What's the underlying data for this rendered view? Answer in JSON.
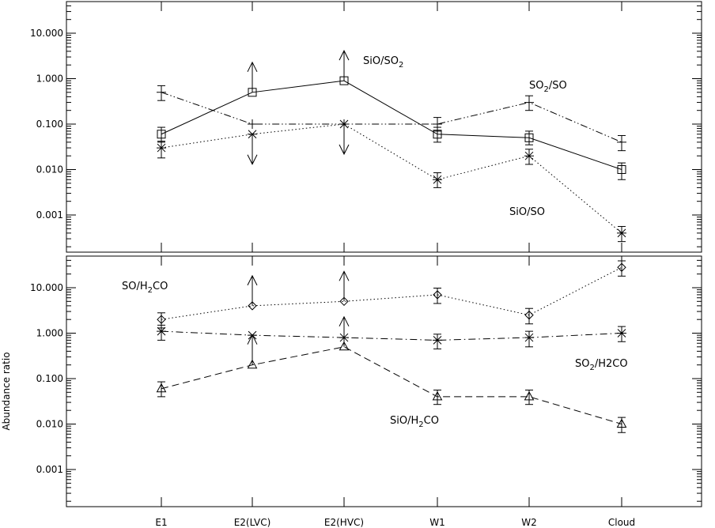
{
  "chart_data": [
    {
      "type": "line",
      "panel": "top",
      "yscale": "log",
      "ylim": [
        0.0002,
        50
      ],
      "ytick_labels": [
        "0.001",
        "0.010",
        "0.100",
        "1.000",
        "10.000"
      ],
      "categories": [
        "E1",
        "E2(LVC)",
        "E2(HVC)",
        "W1",
        "W2",
        "Cloud"
      ],
      "series": [
        {
          "label_parts": [
            "SiO/SO",
            "2",
            ""
          ],
          "line_style": "solid",
          "marker": "square",
          "values": [
            0.06,
            0.5,
            0.9,
            0.06,
            0.05,
            0.01
          ],
          "err_lo": [
            0.04,
            null,
            null,
            0.04,
            0.035,
            0.006
          ],
          "err_hi": [
            0.085,
            null,
            null,
            0.085,
            0.07,
            0.014
          ],
          "limits": [
            "",
            "lower",
            "lower",
            "",
            "",
            ""
          ]
        },
        {
          "label_parts": [
            "SO",
            "2",
            "/SO"
          ],
          "line_style": "dashdotdot",
          "marker": "plus",
          "values": [
            0.5,
            0.1,
            0.1,
            0.1,
            0.3,
            0.04
          ],
          "err_lo": [
            0.33,
            null,
            null,
            0.07,
            0.2,
            0.026
          ],
          "err_hi": [
            0.7,
            null,
            null,
            0.14,
            0.42,
            0.056
          ],
          "limits": [
            "",
            "",
            "",
            "",
            "",
            ""
          ]
        },
        {
          "label_parts": [
            "SiO/SO",
            "",
            ""
          ],
          "line_style": "dotted",
          "marker": "asterisk",
          "values": [
            0.03,
            0.06,
            0.1,
            0.006,
            0.02,
            0.0004
          ],
          "err_lo": [
            0.018,
            null,
            null,
            0.004,
            0.013,
            0.00026
          ],
          "err_hi": [
            0.042,
            null,
            null,
            0.0085,
            0.028,
            0.00056
          ],
          "limits": [
            "",
            "upper",
            "upper",
            "",
            "",
            ""
          ]
        }
      ]
    },
    {
      "type": "line",
      "panel": "bottom",
      "yscale": "log",
      "ylim": [
        0.0002,
        50
      ],
      "ylabel": "Abundance ratio",
      "ytick_labels": [
        "0.001",
        "0.010",
        "0.100",
        "1.000",
        "10.000"
      ],
      "categories": [
        "E1",
        "E2(LVC)",
        "E2(HVC)",
        "W1",
        "W2",
        "Cloud"
      ],
      "series": [
        {
          "label_parts": [
            "SO/H",
            "2",
            "CO"
          ],
          "line_style": "dotted",
          "marker": "diamond",
          "values": [
            2,
            4,
            5,
            7,
            2.5,
            28
          ],
          "err_lo": [
            1.3,
            null,
            null,
            4.5,
            1.6,
            18
          ],
          "err_hi": [
            2.8,
            null,
            null,
            9.8,
            3.5,
            39
          ],
          "limits": [
            "",
            "lower",
            "lower",
            "",
            "",
            ""
          ]
        },
        {
          "label_parts": [
            "SO",
            "2",
            "/H2CO"
          ],
          "line_style": "dashdot",
          "marker": "asterisk",
          "values": [
            1.1,
            0.9,
            0.8,
            0.7,
            0.8,
            1.0
          ],
          "err_lo": [
            0.7,
            null,
            null,
            0.45,
            0.5,
            0.65
          ],
          "err_hi": [
            1.5,
            null,
            null,
            0.95,
            1.1,
            1.4
          ],
          "limits": [
            "",
            "",
            "",
            "",
            "",
            ""
          ]
        },
        {
          "label_parts": [
            "SiO/H",
            "2",
            "CO"
          ],
          "line_style": "dashed",
          "marker": "triangle",
          "values": [
            0.06,
            0.2,
            0.5,
            0.04,
            0.04,
            0.01
          ],
          "err_lo": [
            0.04,
            null,
            null,
            0.027,
            0.027,
            0.0065
          ],
          "err_hi": [
            0.085,
            null,
            null,
            0.056,
            0.056,
            0.014
          ],
          "limits": [
            "",
            "lower",
            "lower",
            "",
            "",
            ""
          ]
        }
      ]
    }
  ]
}
